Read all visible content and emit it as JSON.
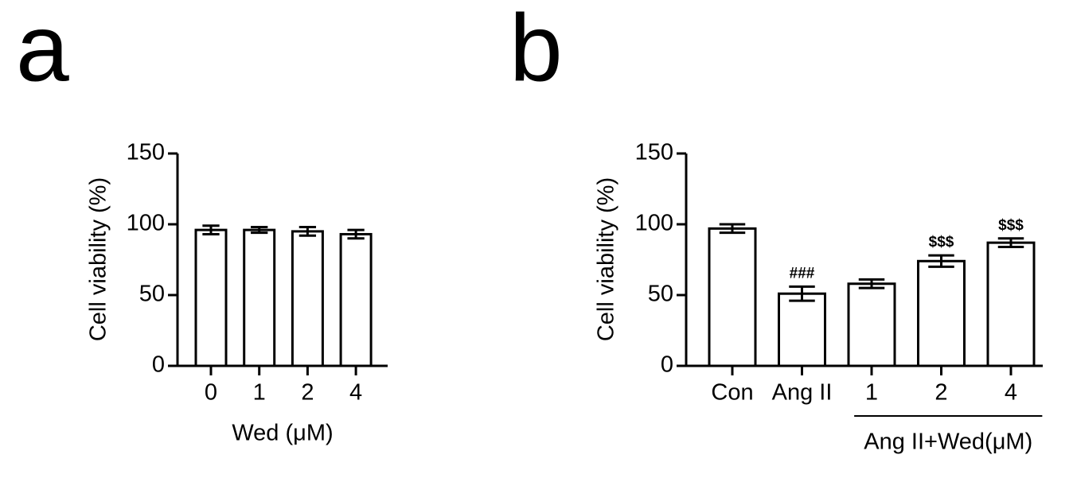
{
  "chart_data": [
    {
      "type": "bar",
      "panel": "a",
      "y_label": "Cell viability (%)",
      "x_label": "Wed (μM)",
      "categories": [
        "0",
        "1",
        "2",
        "4"
      ],
      "values": [
        96,
        96,
        95,
        93
      ],
      "errors": [
        3,
        2,
        3,
        3
      ],
      "color": "#ffffff",
      "ylim": [
        0,
        150
      ],
      "yticks": [
        0,
        50,
        100,
        150
      ]
    },
    {
      "type": "bar",
      "panel": "b",
      "y_label": "Cell viability (%)",
      "categories": [
        "Con",
        "Ang II",
        "1",
        "2",
        "4"
      ],
      "values": [
        97,
        51,
        58,
        74,
        87
      ],
      "errors": [
        3,
        5,
        3,
        4,
        3
      ],
      "annotations": [
        null,
        "###",
        null,
        "$$$",
        "$$$"
      ],
      "group": {
        "label": "Ang II+Wed(μM)",
        "from": "1",
        "to": "4"
      },
      "color": "#ffffff",
      "ylim": [
        0,
        150
      ],
      "yticks": [
        0,
        50,
        100,
        150
      ]
    }
  ]
}
